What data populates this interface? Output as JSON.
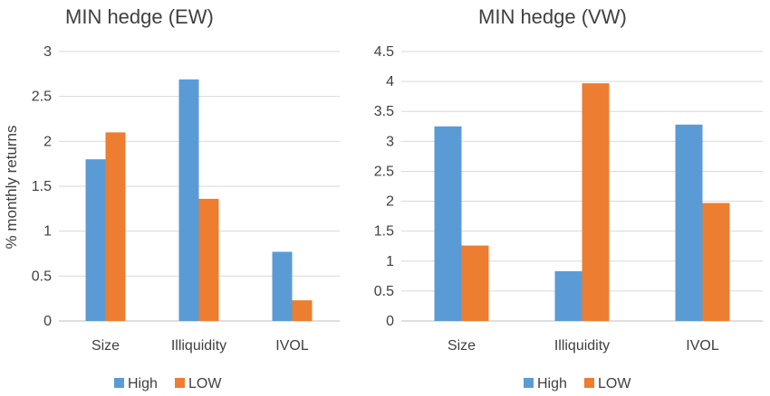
{
  "chart_data": [
    {
      "type": "bar",
      "title": "MIN hedge (EW)",
      "ylabel": "% monthly returns",
      "xlabel": "",
      "categories": [
        "Size",
        "Illiquidity",
        "IVOL"
      ],
      "ylim": [
        0,
        3
      ],
      "yticks": [
        "0",
        "0.5",
        "1",
        "1.5",
        "2",
        "2.5",
        "3"
      ],
      "grid": true,
      "legend_position": "bottom",
      "series": [
        {
          "name": "High",
          "color": "#5b9bd5",
          "values": [
            1.8,
            2.69,
            0.77
          ]
        },
        {
          "name": "LOW",
          "color": "#ed7d31",
          "values": [
            2.1,
            1.36,
            0.23
          ]
        }
      ]
    },
    {
      "type": "bar",
      "title": "MIN hedge (VW)",
      "ylabel": "",
      "xlabel": "",
      "categories": [
        "Size",
        "Illiquidity",
        "IVOL"
      ],
      "ylim": [
        0,
        4.5
      ],
      "yticks": [
        "0",
        "0.5",
        "1",
        "1.5",
        "2",
        "2.5",
        "3",
        "3.5",
        "4",
        "4.5"
      ],
      "grid": true,
      "legend_position": "bottom",
      "series": [
        {
          "name": "High",
          "color": "#5b9bd5",
          "values": [
            3.25,
            0.83,
            3.28
          ]
        },
        {
          "name": "LOW",
          "color": "#ed7d31",
          "values": [
            1.26,
            3.97,
            1.97
          ]
        }
      ]
    }
  ]
}
